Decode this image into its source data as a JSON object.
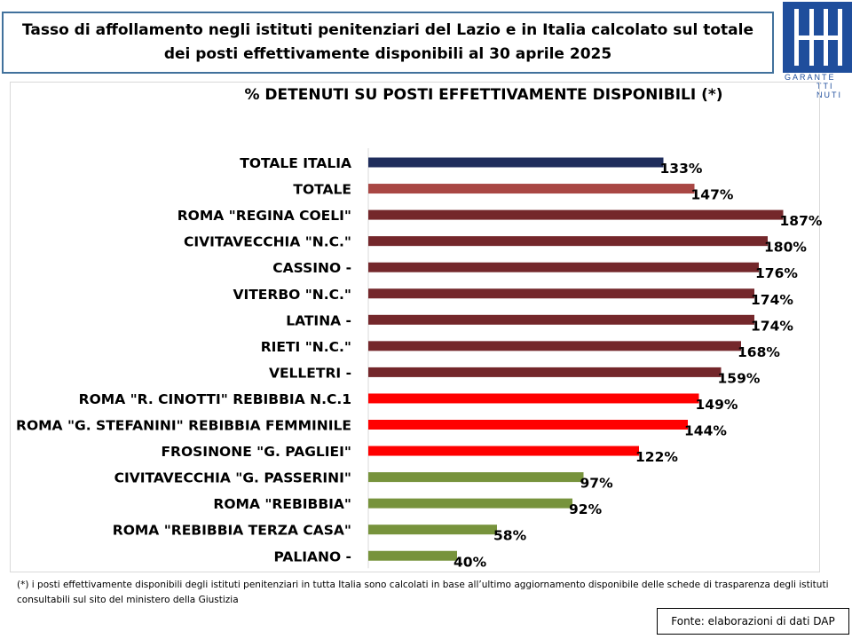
{
  "header": {
    "title": "Tasso di affollamento negli istituti penitenziari del Lazio e in Italia calcolato sul totale dei posti effettivamente disponibili al 30 aprile 2025"
  },
  "logo": {
    "text_lines": [
      "GARANTE",
      "TTI",
      "NUTI"
    ]
  },
  "chart_data": {
    "type": "bar",
    "orientation": "horizontal",
    "title": "% DETENUTI SU POSTI EFFETTIVAMENTE DISPONIBILI (*)",
    "xlabel": "",
    "ylabel": "",
    "xlim": [
      0,
      190
    ],
    "grid": false,
    "legend": "none",
    "bars": [
      {
        "category": "TOTALE ITALIA",
        "value": 133,
        "label": "133%",
        "color": "#1f2d5c"
      },
      {
        "category": "TOTALE",
        "value": 147,
        "label": "147%",
        "color": "#a94744"
      },
      {
        "category": "ROMA \"REGINA COELI\"",
        "value": 187,
        "label": "187%",
        "color": "#74272b"
      },
      {
        "category": "CIVITAVECCHIA \"N.C.\"",
        "value": 180,
        "label": "180%",
        "color": "#74272b"
      },
      {
        "category": "CASSINO -",
        "value": 176,
        "label": "176%",
        "color": "#74272b"
      },
      {
        "category": "VITERBO \"N.C.\"",
        "value": 174,
        "label": "174%",
        "color": "#74272b"
      },
      {
        "category": "LATINA -",
        "value": 174,
        "label": "174%",
        "color": "#74272b"
      },
      {
        "category": "RIETI \"N.C.\"",
        "value": 168,
        "label": "168%",
        "color": "#74272b"
      },
      {
        "category": "VELLETRI -",
        "value": 159,
        "label": "159%",
        "color": "#74272b"
      },
      {
        "category": "ROMA \"R. CINOTTI\" REBIBBIA N.C.1",
        "value": 149,
        "label": "149%",
        "color": "#ff0000"
      },
      {
        "category": "ROMA \"G. STEFANINI\" REBIBBIA FEMMINILE",
        "value": 144,
        "label": "144%",
        "color": "#ff0000"
      },
      {
        "category": "FROSINONE \"G. PAGLIEI\"",
        "value": 122,
        "label": "122%",
        "color": "#ff0000"
      },
      {
        "category": "CIVITAVECCHIA \"G. PASSERINI\"",
        "value": 97,
        "label": "97%",
        "color": "#77933c"
      },
      {
        "category": "ROMA \"REBIBBIA\"",
        "value": 92,
        "label": "92%",
        "color": "#77933c"
      },
      {
        "category": "ROMA \"REBIBBIA TERZA CASA\"",
        "value": 58,
        "label": "58%",
        "color": "#77933c"
      },
      {
        "category": "PALIANO -",
        "value": 40,
        "label": "40%",
        "color": "#77933c"
      }
    ]
  },
  "footnote": "(*) i posti effettivamente disponibili  degli istituti penitenziari in tutta Italia sono calcolati in base all’ultimo aggiornamento disponibile  delle schede di trasparenza degli istituti consultabili sul sito del ministero della Giustizia",
  "source": "Fonte: elaborazioni di dati DAP"
}
